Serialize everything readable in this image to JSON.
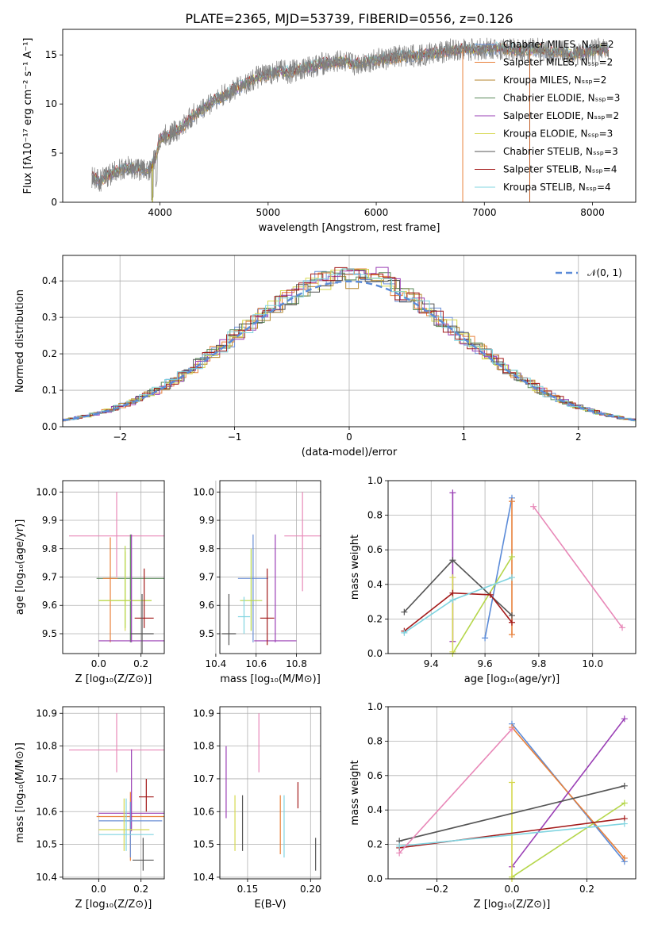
{
  "figure": {
    "title": "PLATE=2365, MJD=53739, FIBERID=0556, z=0.126"
  },
  "chart_data": [
    {
      "id": "spectrum",
      "type": "line",
      "xlabel": "wavelength [Angstrom, rest frame]",
      "ylabel": "Flux [fλ10⁻¹⁷ erg cm⁻² s⁻¹ A⁻¹]",
      "xlim": [
        3100,
        8400
      ],
      "ylim": [
        0,
        17.6
      ],
      "xticks": [
        4000,
        5000,
        6000,
        7000,
        8000
      ],
      "yticks": [
        0,
        5,
        10,
        15
      ],
      "grid": false,
      "legend": "top-right",
      "legend_entries": [
        {
          "label": "Chabrier MILES, Nₛₛₚ=2",
          "color": "#6b8fd6"
        },
        {
          "label": "Salpeter MILES, Nₛₛₚ=2",
          "color": "#e8803a"
        },
        {
          "label": "Kroupa MILES, Nₛₛₚ=2",
          "color": "#b5862c"
        },
        {
          "label": "Chabrier ELODIE, Nₛₛₚ=3",
          "color": "#5a8a5a"
        },
        {
          "label": "Salpeter ELODIE, Nₛₛₚ=2",
          "color": "#9a3fb5"
        },
        {
          "label": "Kroupa ELODIE, Nₛₛₚ=3",
          "color": "#d6d850"
        },
        {
          "label": "Chabrier STELIB, Nₛₛₚ=3",
          "color": "#555555"
        },
        {
          "label": "Salpeter STELIB, Nₛₛₚ=4",
          "color": "#a31a1a"
        },
        {
          "label": "Kroupa STELIB, Nₛₛₚ=4",
          "color": "#80d4e0"
        }
      ],
      "series": [
        {
          "color": "#808080",
          "x": [
            3370,
            3450,
            3530,
            3600,
            3700,
            3800,
            3900,
            3960,
            4000,
            4100,
            4200,
            4300,
            4400,
            4500,
            4600,
            4700,
            4800,
            4900,
            5000,
            5100,
            5200,
            5300,
            5400,
            5500,
            5600,
            5700,
            5800,
            5900,
            6000,
            6100,
            6200,
            6300,
            6400,
            6500,
            6600,
            6700,
            6800,
            6900,
            7000,
            7100,
            7200,
            7300,
            7400,
            7500,
            7600,
            7700,
            7800,
            7900,
            8000,
            8100,
            8150
          ],
          "y": [
            2.6,
            2.2,
            2.8,
            3.2,
            3.5,
            3.4,
            3.3,
            4.5,
            6.5,
            7.0,
            7.6,
            8.8,
            9.5,
            10.4,
            10.9,
            11.6,
            12.1,
            12.7,
            13.0,
            13.4,
            13.2,
            13.6,
            13.8,
            14.1,
            14.2,
            14.4,
            14.0,
            14.3,
            14.5,
            14.6,
            14.8,
            14.9,
            15.0,
            15.1,
            15.3,
            15.5,
            15.6,
            15.5,
            15.6,
            15.7,
            15.6,
            15.5,
            15.5,
            15.6,
            15.3,
            15.4,
            15.0,
            15.2,
            15.4,
            15.6,
            15.4
          ]
        }
      ]
    },
    {
      "id": "residuals",
      "type": "line",
      "xlabel": "(data-model)/error",
      "ylabel": "Normed distribution",
      "xlim": [
        -2.5,
        2.5
      ],
      "ylim": [
        0,
        0.47
      ],
      "xticks": [
        -2,
        -1,
        0,
        1,
        2
      ],
      "yticks": [
        0.0,
        0.1,
        0.2,
        0.3,
        0.4
      ],
      "grid": true,
      "legend": "top-right",
      "legend_entries": [
        {
          "label": "𝒩(0, 1)",
          "color": "#5b8bd8"
        }
      ],
      "series": [
        {
          "name": "𝒩(0, 1)",
          "color": "#5b8bd8",
          "curve": "normal",
          "mean": 0,
          "sigma": 1
        }
      ]
    },
    {
      "id": "age-vs-Z",
      "type": "scatter",
      "xlabel": "Z [log₁₀(Z/Z⊙)]",
      "ylabel": "age  [log₁₀(age/yr)]",
      "xlim": [
        -0.17,
        0.31
      ],
      "ylim": [
        9.43,
        10.04
      ],
      "xticks": [
        0.0,
        0.2
      ],
      "yticks": [
        9.5,
        9.6,
        9.7,
        9.8,
        9.9,
        10.0
      ],
      "grid": true
    },
    {
      "id": "age-vs-mass",
      "type": "scatter",
      "xlabel": "mass [log₁₀(M/M⊙)]",
      "xlim": [
        10.42,
        10.92
      ],
      "ylim": [
        9.43,
        10.04
      ],
      "xticks": [
        10.4,
        10.6,
        10.8
      ],
      "yticks": [
        9.5,
        9.6,
        9.7,
        9.8,
        9.9,
        10.0
      ],
      "grid": true
    },
    {
      "id": "mass-weight-vs-age",
      "type": "line",
      "xlabel": "age  [log₁₀(age/yr)]",
      "ylabel": "mass weight",
      "xlim": [
        9.24,
        10.16
      ],
      "ylim": [
        0,
        1
      ],
      "xticks": [
        9.4,
        9.6,
        9.8,
        10.0
      ],
      "yticks": [
        0.0,
        0.2,
        0.4,
        0.6,
        0.8,
        1.0
      ],
      "grid": true,
      "series": [
        {
          "color": "#5b8bd8",
          "x": [
            9.6,
            9.7
          ],
          "y": [
            0.09,
            0.9
          ]
        },
        {
          "color": "#e8803a",
          "x": [
            9.7,
            9.7
          ],
          "y": [
            0.11,
            0.88
          ]
        },
        {
          "color": "#9a3fb5",
          "x": [
            9.48,
            9.48
          ],
          "y": [
            0.07,
            0.93
          ]
        },
        {
          "color": "#b5d64a",
          "x": [
            9.48,
            9.7
          ],
          "y": [
            0.0,
            0.56
          ]
        },
        {
          "color": "#d6d850",
          "x": [
            9.48,
            9.48
          ],
          "y": [
            0.01,
            0.44
          ]
        },
        {
          "color": "#555555",
          "x": [
            9.3,
            9.48,
            9.7
          ],
          "y": [
            0.24,
            0.54,
            0.22
          ]
        },
        {
          "color": "#a31a1a",
          "x": [
            9.3,
            9.48,
            9.62,
            9.7
          ],
          "y": [
            0.13,
            0.35,
            0.34,
            0.18
          ]
        },
        {
          "color": "#80d4e0",
          "x": [
            9.3,
            9.48,
            9.7
          ],
          "y": [
            0.12,
            0.31,
            0.44
          ]
        },
        {
          "color": "#e888b8",
          "x": [
            9.78,
            10.11
          ],
          "y": [
            0.85,
            0.15
          ]
        }
      ]
    },
    {
      "id": "mass-vs-Z",
      "type": "scatter",
      "xlabel": "Z [log₁₀(Z/Z⊙)]",
      "ylabel": "mass [log₁₀(M/M⊙)]",
      "xlim": [
        -0.17,
        0.31
      ],
      "ylim": [
        10.395,
        10.92
      ],
      "xticks": [
        0.0,
        0.2
      ],
      "yticks": [
        10.4,
        10.5,
        10.6,
        10.7,
        10.8,
        10.9
      ],
      "grid": true
    },
    {
      "id": "mass-vs-EBV",
      "type": "scatter",
      "xlabel": "E(B-V)",
      "xlim": [
        0.128,
        0.208
      ],
      "ylim": [
        10.395,
        10.92
      ],
      "xticks": [
        0.15,
        0.2
      ],
      "yticks": [
        10.4,
        10.5,
        10.6,
        10.7,
        10.8,
        10.9
      ],
      "grid": true
    },
    {
      "id": "mass-weight-vs-Z",
      "type": "line",
      "xlabel": "Z [log₁₀(Z/Z⊙)]",
      "ylabel": "mass weight",
      "xlim": [
        -0.33,
        0.33
      ],
      "ylim": [
        0,
        1
      ],
      "xticks": [
        -0.2,
        0.0,
        0.2
      ],
      "yticks": [
        0.0,
        0.2,
        0.4,
        0.6,
        0.8,
        1.0
      ],
      "grid": true,
      "series": [
        {
          "color": "#5b8bd8",
          "x": [
            0.0,
            0.3
          ],
          "y": [
            0.9,
            0.1
          ]
        },
        {
          "color": "#e8803a",
          "x": [
            0.0,
            0.3
          ],
          "y": [
            0.88,
            0.12
          ]
        },
        {
          "color": "#9a3fb5",
          "x": [
            0.0,
            0.3
          ],
          "y": [
            0.07,
            0.93
          ]
        },
        {
          "color": "#b5d64a",
          "x": [
            0.0,
            0.3
          ],
          "y": [
            0.01,
            0.44
          ]
        },
        {
          "color": "#d6d850",
          "x": [
            0.0,
            0.0
          ],
          "y": [
            0.0,
            0.56
          ]
        },
        {
          "color": "#555555",
          "x": [
            -0.3,
            0.3
          ],
          "y": [
            0.22,
            0.54
          ]
        },
        {
          "color": "#a31a1a",
          "x": [
            -0.3,
            0.3
          ],
          "y": [
            0.18,
            0.35
          ]
        },
        {
          "color": "#80d4e0",
          "x": [
            -0.3,
            0.3
          ],
          "y": [
            0.19,
            0.32
          ]
        },
        {
          "color": "#e888b8",
          "x": [
            -0.3,
            0.0
          ],
          "y": [
            0.15,
            0.87
          ]
        }
      ]
    }
  ]
}
